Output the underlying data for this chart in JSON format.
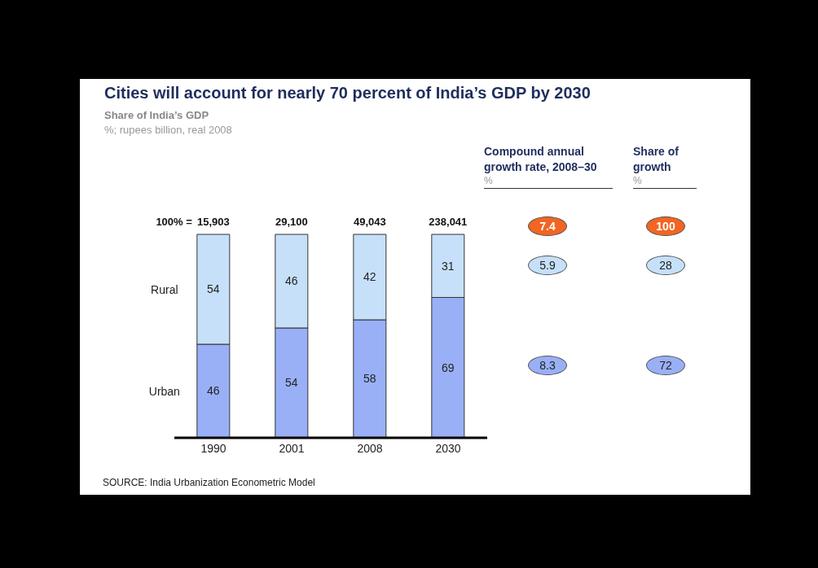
{
  "chart_data": [
    {
      "type": "bar",
      "title": "Cities will account for nearly 70 percent of India’s GDP by 2030",
      "subtitle": "Share of India’s GDP",
      "categories": [
        "1990",
        "2001",
        "2008",
        "2030"
      ],
      "stacked": true,
      "data_labels": true,
      "tick_labels": "x",
      "series": [
        {
          "name": "Urban",
          "color": "#99b0f7",
          "values": [
            46,
            54,
            58,
            69
          ]
        },
        {
          "name": "Rural",
          "color": "#c6e0f9",
          "values": [
            54,
            46,
            42,
            31
          ]
        }
      ],
      "annotations": [
        "%; rupees billion, real 2008",
        "100% =",
        {
          "text": "15,903",
          "x": "1990",
          "y": 100
        },
        {
          "text": "29,100",
          "x": "2001",
          "y": 100
        },
        {
          "text": "49,043",
          "x": "2008",
          "y": 100
        },
        {
          "text": "238,041",
          "x": "2030",
          "y": 100
        },
        "SOURCE: India Urbanization Econometric Model"
      ]
    },
    {
      "type": "other",
      "categories": [
        "Compound annual growth rate, 2008–30",
        "Share of growth"
      ],
      "ylabel": "%",
      "data_labels": true,
      "series": [
        {
          "color": "#f26522",
          "values": [
            7.4,
            100
          ]
        },
        {
          "color": "#c6e0f9",
          "values": [
            5.9,
            28
          ]
        },
        {
          "color": "#99b0f7",
          "values": [
            8.3,
            72
          ]
        }
      ]
    }
  ]
}
